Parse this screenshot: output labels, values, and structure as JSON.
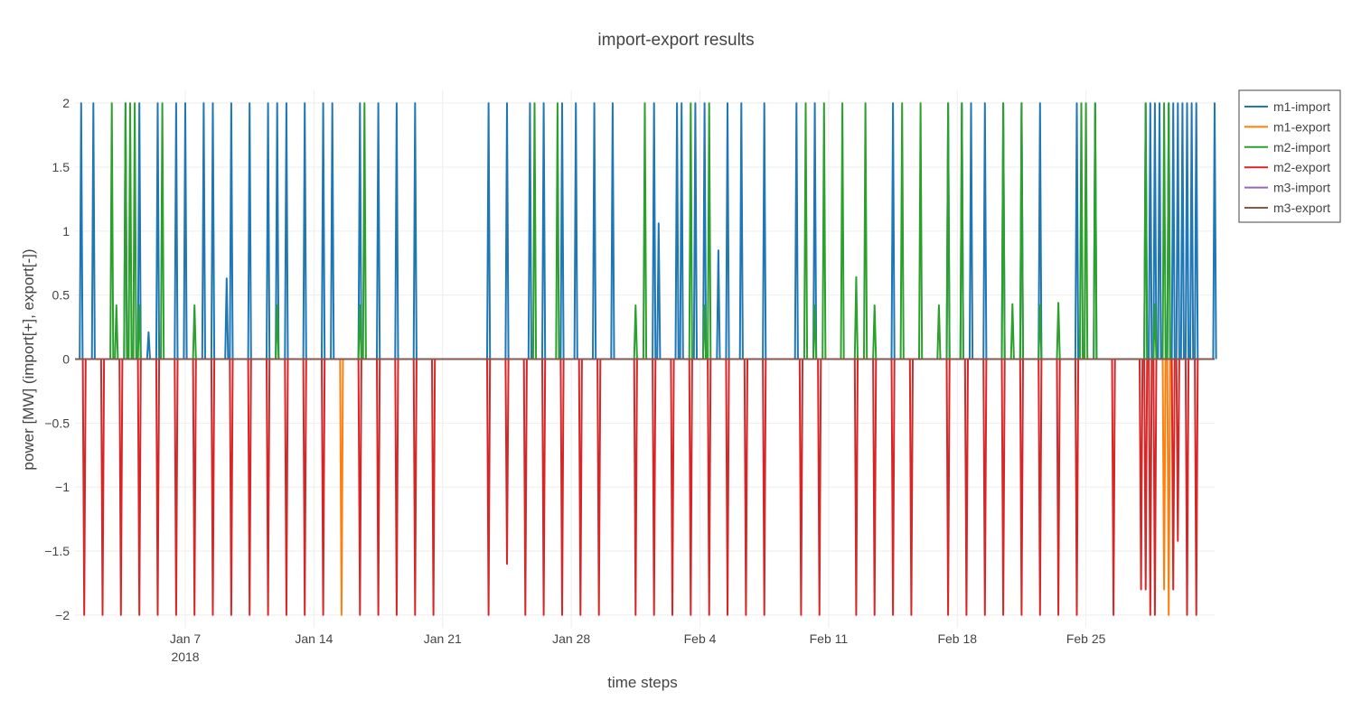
{
  "chart_data": {
    "type": "line",
    "title": "import-export results",
    "xlabel": "time steps",
    "ylabel": "power [MW] (import[+], export[-])",
    "x_range": [
      "2018-01-01",
      "2018-03-04"
    ],
    "ylim": [
      -2.1,
      2.1
    ],
    "yticks": [
      2,
      1.5,
      1,
      0.5,
      0,
      -0.5,
      -1,
      -1.5,
      -2
    ],
    "ytick_labels": [
      "2",
      "1.5",
      "1",
      "0.5",
      "0",
      "−0.5",
      "−1",
      "−1.5",
      "−2"
    ],
    "xticks": [
      {
        "date": "2018-01-07",
        "label": "Jan 7",
        "sublabel": "2018"
      },
      {
        "date": "2018-01-14",
        "label": "Jan 14",
        "sublabel": ""
      },
      {
        "date": "2018-01-21",
        "label": "Jan 21",
        "sublabel": ""
      },
      {
        "date": "2018-01-28",
        "label": "Jan 28",
        "sublabel": ""
      },
      {
        "date": "2018-02-04",
        "label": "Feb 4",
        "sublabel": ""
      },
      {
        "date": "2018-02-11",
        "label": "Feb 11",
        "sublabel": ""
      },
      {
        "date": "2018-02-18",
        "label": "Feb 18",
        "sublabel": ""
      },
      {
        "date": "2018-02-25",
        "label": "Feb 25",
        "sublabel": ""
      }
    ],
    "grid": true,
    "legend_position": "top-right",
    "series": [
      {
        "name": "m1-import",
        "color": "#1f77b4",
        "spikes": [
          {
            "date": "2018-01-01 08:00",
            "value": 2
          },
          {
            "date": "2018-01-02 00:00",
            "value": 2
          },
          {
            "date": "2018-01-03 18:00",
            "value": 2
          },
          {
            "date": "2018-01-04 12:00",
            "value": 2
          },
          {
            "date": "2018-01-05 00:00",
            "value": 0.21
          },
          {
            "date": "2018-01-05 12:00",
            "value": 2
          },
          {
            "date": "2018-01-06 12:00",
            "value": 2
          },
          {
            "date": "2018-01-07 00:00",
            "value": 2
          },
          {
            "date": "2018-01-08 00:00",
            "value": 2
          },
          {
            "date": "2018-01-08 12:00",
            "value": 2
          },
          {
            "date": "2018-01-09 06:00",
            "value": 0.63
          },
          {
            "date": "2018-01-09 12:00",
            "value": 2
          },
          {
            "date": "2018-01-10 12:00",
            "value": 2
          },
          {
            "date": "2018-01-11 12:00",
            "value": 2
          },
          {
            "date": "2018-01-12 00:00",
            "value": 2
          },
          {
            "date": "2018-01-12 12:00",
            "value": 2
          },
          {
            "date": "2018-01-13 12:00",
            "value": 2
          },
          {
            "date": "2018-01-14 12:00",
            "value": 2
          },
          {
            "date": "2018-01-15 00:00",
            "value": 2
          },
          {
            "date": "2018-01-16 12:00",
            "value": 2
          },
          {
            "date": "2018-01-17 12:00",
            "value": 2
          },
          {
            "date": "2018-01-18 12:00",
            "value": 2
          },
          {
            "date": "2018-01-19 12:00",
            "value": 2
          },
          {
            "date": "2018-01-23 12:00",
            "value": 2
          },
          {
            "date": "2018-01-24 12:00",
            "value": 2
          },
          {
            "date": "2018-01-25 18:00",
            "value": 2
          },
          {
            "date": "2018-01-26 12:00",
            "value": 2
          },
          {
            "date": "2018-01-27 12:00",
            "value": 2
          },
          {
            "date": "2018-01-28 06:00",
            "value": 2
          },
          {
            "date": "2018-01-29 06:00",
            "value": 2
          },
          {
            "date": "2018-01-30 06:00",
            "value": 2
          },
          {
            "date": "2018-02-01 12:00",
            "value": 2
          },
          {
            "date": "2018-02-01 18:00",
            "value": 1.06
          },
          {
            "date": "2018-02-02 18:00",
            "value": 2
          },
          {
            "date": "2018-02-03 00:00",
            "value": 2
          },
          {
            "date": "2018-02-03 18:00",
            "value": 2
          },
          {
            "date": "2018-02-04 06:00",
            "value": 2
          },
          {
            "date": "2018-02-05 00:00",
            "value": 0.85
          },
          {
            "date": "2018-02-05 12:00",
            "value": 2
          },
          {
            "date": "2018-02-06 06:00",
            "value": 2
          },
          {
            "date": "2018-02-07 12:00",
            "value": 2
          },
          {
            "date": "2018-02-09 06:00",
            "value": 2
          },
          {
            "date": "2018-02-10 06:00",
            "value": 2
          },
          {
            "date": "2018-02-14 12:00",
            "value": 2
          },
          {
            "date": "2018-02-17 12:00",
            "value": 2
          },
          {
            "date": "2018-02-18 06:00",
            "value": 2
          },
          {
            "date": "2018-02-18 18:00",
            "value": 2
          },
          {
            "date": "2018-02-19 12:00",
            "value": 2
          },
          {
            "date": "2018-02-20 12:00",
            "value": 2
          },
          {
            "date": "2018-02-21 12:00",
            "value": 2
          },
          {
            "date": "2018-02-22 12:00",
            "value": 2
          },
          {
            "date": "2018-02-24 12:00",
            "value": 2
          },
          {
            "date": "2018-02-25 12:00",
            "value": 2
          },
          {
            "date": "2018-02-28 06:00",
            "value": 2
          },
          {
            "date": "2018-02-28 12:00",
            "value": 2
          },
          {
            "date": "2018-02-28 18:00",
            "value": 2
          },
          {
            "date": "2018-03-01 00:00",
            "value": 2
          },
          {
            "date": "2018-03-01 12:00",
            "value": 2
          },
          {
            "date": "2018-03-01 18:00",
            "value": 2
          },
          {
            "date": "2018-03-02 00:00",
            "value": 2
          },
          {
            "date": "2018-03-02 06:00",
            "value": 2
          },
          {
            "date": "2018-03-02 12:00",
            "value": 2
          },
          {
            "date": "2018-03-02 18:00",
            "value": 2
          },
          {
            "date": "2018-03-03 00:00",
            "value": 2
          },
          {
            "date": "2018-03-04 00:00",
            "value": 2
          }
        ]
      },
      {
        "name": "m1-export",
        "color": "#ff7f0e",
        "spikes": [
          {
            "date": "2018-01-15 12:00",
            "value": -2
          },
          {
            "date": "2018-03-01 06:00",
            "value": -1.8
          },
          {
            "date": "2018-03-01 12:00",
            "value": -2
          }
        ]
      },
      {
        "name": "m2-import",
        "color": "#2ca02c",
        "spikes": [
          {
            "date": "2018-01-03 00:00",
            "value": 2
          },
          {
            "date": "2018-01-03 06:00",
            "value": 0.42
          },
          {
            "date": "2018-01-03 18:00",
            "value": 2
          },
          {
            "date": "2018-01-04 00:00",
            "value": 2
          },
          {
            "date": "2018-01-04 06:00",
            "value": 2
          },
          {
            "date": "2018-01-04 12:00",
            "value": 0.42
          },
          {
            "date": "2018-01-05 18:00",
            "value": 2
          },
          {
            "date": "2018-01-07 12:00",
            "value": 0.42
          },
          {
            "date": "2018-01-12 00:00",
            "value": 0.42
          },
          {
            "date": "2018-01-16 12:00",
            "value": 0.42
          },
          {
            "date": "2018-01-16 18:00",
            "value": 2
          },
          {
            "date": "2018-01-26 00:00",
            "value": 2
          },
          {
            "date": "2018-01-27 06:00",
            "value": 2
          },
          {
            "date": "2018-01-31 12:00",
            "value": 0.42
          },
          {
            "date": "2018-02-01 00:00",
            "value": 2
          },
          {
            "date": "2018-02-03 12:00",
            "value": 2
          },
          {
            "date": "2018-02-04 06:00",
            "value": 0.42
          },
          {
            "date": "2018-02-04 12:00",
            "value": 2
          },
          {
            "date": "2018-02-09 18:00",
            "value": 2
          },
          {
            "date": "2018-02-10 06:00",
            "value": 0.42
          },
          {
            "date": "2018-02-10 18:00",
            "value": 2
          },
          {
            "date": "2018-02-11 18:00",
            "value": 2
          },
          {
            "date": "2018-02-12 12:00",
            "value": 0.64
          },
          {
            "date": "2018-02-13 00:00",
            "value": 2
          },
          {
            "date": "2018-02-13 12:00",
            "value": 0.42
          },
          {
            "date": "2018-02-15 00:00",
            "value": 2
          },
          {
            "date": "2018-02-16 00:00",
            "value": 2
          },
          {
            "date": "2018-02-17 00:00",
            "value": 0.42
          },
          {
            "date": "2018-02-17 12:00",
            "value": 2
          },
          {
            "date": "2018-02-18 06:00",
            "value": 2
          },
          {
            "date": "2018-02-20 12:00",
            "value": 2
          },
          {
            "date": "2018-02-21 00:00",
            "value": 0.43
          },
          {
            "date": "2018-02-21 12:00",
            "value": 2
          },
          {
            "date": "2018-02-22 12:00",
            "value": 0.42
          },
          {
            "date": "2018-02-23 12:00",
            "value": 0.44
          },
          {
            "date": "2018-02-24 18:00",
            "value": 2
          },
          {
            "date": "2018-02-25 00:00",
            "value": 2
          },
          {
            "date": "2018-02-25 12:00",
            "value": 2
          },
          {
            "date": "2018-02-28 06:00",
            "value": 2
          },
          {
            "date": "2018-02-28 18:00",
            "value": 0.43
          },
          {
            "date": "2018-03-01 06:00",
            "value": 2
          },
          {
            "date": "2018-03-01 12:00",
            "value": 2
          }
        ]
      },
      {
        "name": "m2-export",
        "color": "#d62728",
        "spikes": [
          {
            "date": "2018-01-01 12:00",
            "value": -2
          },
          {
            "date": "2018-01-02 12:00",
            "value": -2
          },
          {
            "date": "2018-01-03 12:00",
            "value": -2
          },
          {
            "date": "2018-01-04 12:00",
            "value": -2
          },
          {
            "date": "2018-01-05 12:00",
            "value": -2
          },
          {
            "date": "2018-01-06 12:00",
            "value": -2
          },
          {
            "date": "2018-01-07 12:00",
            "value": -2
          },
          {
            "date": "2018-01-08 12:00",
            "value": -2
          },
          {
            "date": "2018-01-09 12:00",
            "value": -2
          },
          {
            "date": "2018-01-10 12:00",
            "value": -2
          },
          {
            "date": "2018-01-11 12:00",
            "value": -2
          },
          {
            "date": "2018-01-12 12:00",
            "value": -2
          },
          {
            "date": "2018-01-13 12:00",
            "value": -2
          },
          {
            "date": "2018-01-14 12:00",
            "value": -2
          },
          {
            "date": "2018-01-16 12:00",
            "value": -2
          },
          {
            "date": "2018-01-17 12:00",
            "value": -2
          },
          {
            "date": "2018-01-18 12:00",
            "value": -2
          },
          {
            "date": "2018-01-19 12:00",
            "value": -2
          },
          {
            "date": "2018-01-20 12:00",
            "value": -2
          },
          {
            "date": "2018-01-23 12:00",
            "value": -2
          },
          {
            "date": "2018-01-24 12:00",
            "value": -1.6
          },
          {
            "date": "2018-01-25 12:00",
            "value": -2
          },
          {
            "date": "2018-01-26 12:00",
            "value": -2
          },
          {
            "date": "2018-01-27 12:00",
            "value": -2
          },
          {
            "date": "2018-01-28 12:00",
            "value": -2
          },
          {
            "date": "2018-01-29 12:00",
            "value": -2
          },
          {
            "date": "2018-01-31 12:00",
            "value": -2
          },
          {
            "date": "2018-02-01 12:00",
            "value": -2
          },
          {
            "date": "2018-02-02 12:00",
            "value": -2
          },
          {
            "date": "2018-02-03 12:00",
            "value": -2
          },
          {
            "date": "2018-02-04 12:00",
            "value": -2
          },
          {
            "date": "2018-02-05 12:00",
            "value": -2
          },
          {
            "date": "2018-02-06 12:00",
            "value": -2
          },
          {
            "date": "2018-02-07 12:00",
            "value": -2
          },
          {
            "date": "2018-02-09 12:00",
            "value": -2
          },
          {
            "date": "2018-02-10 12:00",
            "value": -2
          },
          {
            "date": "2018-02-12 12:00",
            "value": -2
          },
          {
            "date": "2018-02-13 12:00",
            "value": -2
          },
          {
            "date": "2018-02-14 12:00",
            "value": -2
          },
          {
            "date": "2018-02-15 12:00",
            "value": -2
          },
          {
            "date": "2018-02-17 12:00",
            "value": -2
          },
          {
            "date": "2018-02-18 12:00",
            "value": -2
          },
          {
            "date": "2018-02-19 12:00",
            "value": -2
          },
          {
            "date": "2018-02-20 12:00",
            "value": -2
          },
          {
            "date": "2018-02-21 12:00",
            "value": -2
          },
          {
            "date": "2018-02-22 12:00",
            "value": -2
          },
          {
            "date": "2018-02-23 12:00",
            "value": -2
          },
          {
            "date": "2018-02-24 12:00",
            "value": -2
          },
          {
            "date": "2018-02-26 12:00",
            "value": -2
          },
          {
            "date": "2018-02-28 00:00",
            "value": -1.8
          },
          {
            "date": "2018-02-28 06:00",
            "value": -1.8
          },
          {
            "date": "2018-02-28 12:00",
            "value": -2
          },
          {
            "date": "2018-02-28 18:00",
            "value": -2
          },
          {
            "date": "2018-03-01 18:00",
            "value": -1.8
          },
          {
            "date": "2018-03-02 00:00",
            "value": -1.42
          },
          {
            "date": "2018-03-02 12:00",
            "value": -2
          },
          {
            "date": "2018-03-03 00:00",
            "value": -2
          }
        ]
      },
      {
        "name": "m3-import",
        "color": "#9467bd",
        "spikes": []
      },
      {
        "name": "m3-export",
        "color": "#8c564b",
        "spikes": []
      }
    ]
  }
}
